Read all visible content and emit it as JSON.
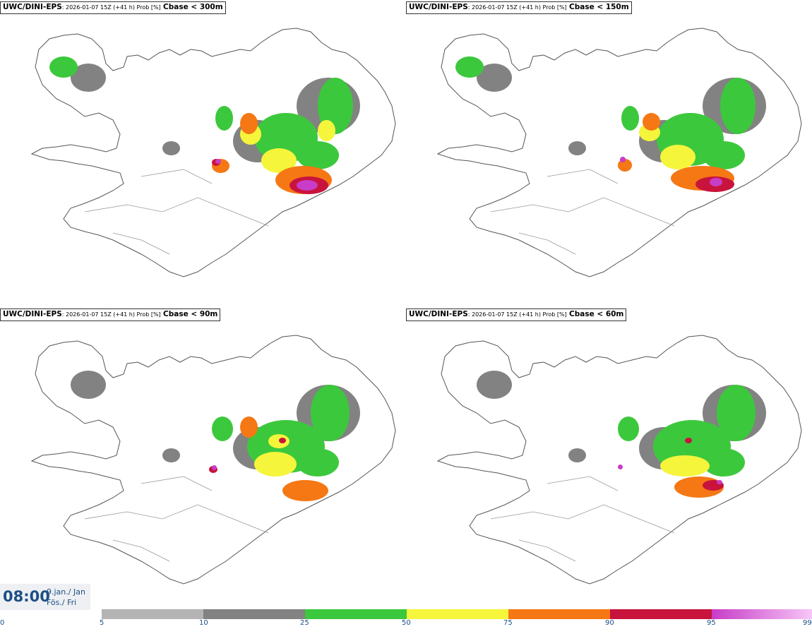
{
  "panels": [
    {
      "model": "UWC/DINI-EPS",
      "meta": ": 2026-01-07 15Z (+41 h) Prob [%]",
      "threshold": "Cbase < 300m"
    },
    {
      "model": "UWC/DINI-EPS",
      "meta": ": 2026-01-07 15Z (+41 h) Prob [%]",
      "threshold": "Cbase < 150m"
    },
    {
      "model": "UWC/DINI-EPS",
      "meta": ": 2026-01-07 15Z (+41 h) Prob [%]",
      "threshold": "Cbase < 90m"
    },
    {
      "model": "UWC/DINI-EPS",
      "meta": ": 2026-01-07 15Z (+41 h) Prob [%]",
      "threshold": "Cbase < 60m"
    }
  ],
  "valid_time": {
    "time": "08:00",
    "date_line1": "9.jan./ Jan",
    "date_line2": "Fös./ Fri"
  },
  "legend": {
    "ticks": [
      "0",
      "5",
      "10",
      "25",
      "50",
      "75",
      "90",
      "95",
      "99"
    ],
    "bins": [
      {
        "from": 5,
        "to": 10,
        "color": "#b4b4b4"
      },
      {
        "from": 10,
        "to": 25,
        "color": "#828282"
      },
      {
        "from": 25,
        "to": 50,
        "color": "#3cc83c"
      },
      {
        "from": 50,
        "to": 75,
        "color": "#f5f53c"
      },
      {
        "from": 75,
        "to": 90,
        "color": "#f57814"
      },
      {
        "from": 90,
        "to": 95,
        "color": "#c8143c"
      },
      {
        "from": 95,
        "to": 99,
        "color": "#c83cc8",
        "color_end": "#f7c8f7"
      }
    ]
  }
}
